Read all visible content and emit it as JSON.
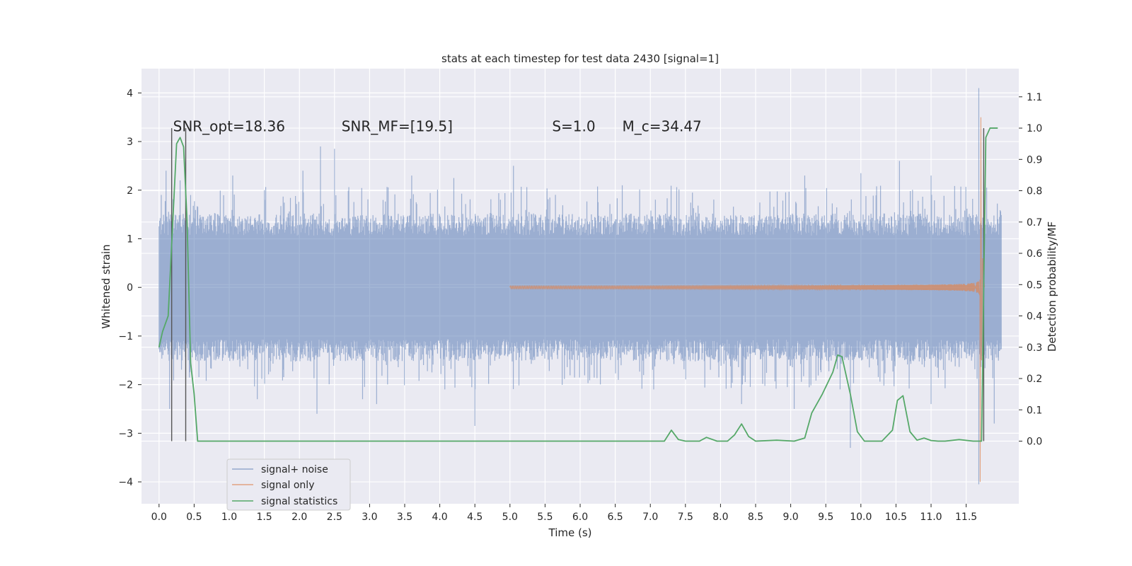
{
  "chart_data": {
    "type": "line",
    "title": "stats at each timestep for test data 2430 [signal=1]",
    "xlabel": "Time (s)",
    "ylabel_left": "Whitened strain",
    "ylabel_right": "Detection probability/MF",
    "xlim": [
      -0.25,
      12.25
    ],
    "ylim_left": [
      -4.45,
      4.5
    ],
    "ylim_right": [
      -0.2,
      1.19
    ],
    "x_ticks": [
      0.0,
      0.5,
      1.0,
      1.5,
      2.0,
      2.5,
      3.0,
      3.5,
      4.0,
      4.5,
      5.0,
      5.5,
      6.0,
      6.5,
      7.0,
      7.5,
      8.0,
      8.5,
      9.0,
      9.5,
      10.0,
      10.5,
      11.0,
      11.5
    ],
    "x_tick_labels": [
      "0.0",
      "0.5",
      "1.0",
      "1.5",
      "2.0",
      "2.5",
      "3.0",
      "3.5",
      "4.0",
      "4.5",
      "5.0",
      "5.5",
      "6.0",
      "6.5",
      "7.0",
      "7.5",
      "8.0",
      "8.5",
      "9.0",
      "9.5",
      "10.0",
      "10.5",
      "11.0",
      "11.5"
    ],
    "y_left_ticks": [
      -4,
      -3,
      -2,
      -1,
      0,
      1,
      2,
      3,
      4
    ],
    "y_left_tick_labels": [
      "−4",
      "−3",
      "−2",
      "−1",
      "0",
      "1",
      "2",
      "3",
      "4"
    ],
    "y_right_ticks": [
      0.0,
      0.1,
      0.2,
      0.3,
      0.4,
      0.5,
      0.6,
      0.7,
      0.8,
      0.9,
      1.0,
      1.1
    ],
    "y_right_tick_labels": [
      "0.0",
      "0.1",
      "0.2",
      "0.3",
      "0.4",
      "0.5",
      "0.6",
      "0.7",
      "0.8",
      "0.9",
      "1.0",
      "1.1"
    ],
    "grid": true,
    "legend_position": "lower-left",
    "annotations": [
      {
        "text": "SNR_opt=18.36",
        "x": 0.2,
        "y": 3.3
      },
      {
        "text": "SNR_MF=[19.5]",
        "x": 2.6,
        "y": 3.3
      },
      {
        "text": "S=1.0",
        "x": 5.6,
        "y": 3.3
      },
      {
        "text": "M_c=34.47",
        "x": 6.6,
        "y": 3.3
      }
    ],
    "vertical_lines": [
      0.18,
      0.38,
      11.75
    ],
    "series": [
      {
        "name": "signal+ noise",
        "color": "#4c72b0",
        "axis": "left",
        "kind": "noise_envelope",
        "x_start": 0.0,
        "x_end": 12.0,
        "typical_amplitude": 1.3,
        "peaks": [
          {
            "x": 0.1,
            "y": 2.4
          },
          {
            "x": 0.3,
            "y": 2.2
          },
          {
            "x": 0.45,
            "y": 1.9
          },
          {
            "x": 1.05,
            "y": 2.3
          },
          {
            "x": 1.5,
            "y": 2.0
          },
          {
            "x": 2.05,
            "y": 2.4
          },
          {
            "x": 2.3,
            "y": 2.9
          },
          {
            "x": 2.5,
            "y": 2.85
          },
          {
            "x": 3.6,
            "y": 2.3
          },
          {
            "x": 4.2,
            "y": 2.25
          },
          {
            "x": 5.05,
            "y": 2.5
          },
          {
            "x": 6.6,
            "y": 2.1
          },
          {
            "x": 7.6,
            "y": 1.95
          },
          {
            "x": 9.2,
            "y": 2.3
          },
          {
            "x": 10.0,
            "y": 2.35
          },
          {
            "x": 10.55,
            "y": 2.6
          },
          {
            "x": 11.0,
            "y": 2.3
          },
          {
            "x": 11.68,
            "y": 4.1
          }
        ],
        "troughs": [
          {
            "x": 0.15,
            "y": -2.5
          },
          {
            "x": 1.4,
            "y": -2.3
          },
          {
            "x": 2.25,
            "y": -2.6
          },
          {
            "x": 2.9,
            "y": -2.3
          },
          {
            "x": 3.1,
            "y": -2.4
          },
          {
            "x": 4.5,
            "y": -2.85
          },
          {
            "x": 8.3,
            "y": -2.4
          },
          {
            "x": 9.05,
            "y": -2.5
          },
          {
            "x": 9.85,
            "y": -3.3
          },
          {
            "x": 11.0,
            "y": -2.4
          },
          {
            "x": 11.68,
            "y": -4.05
          },
          {
            "x": 11.9,
            "y": -2.8
          }
        ]
      },
      {
        "name": "signal only",
        "color": "#dd8452",
        "axis": "left",
        "kind": "chirp",
        "x_start": 5.0,
        "merger_time": 11.7,
        "peak_amplitude": 3.6,
        "ringdown_end": 11.76
      },
      {
        "name": "signal statistics",
        "color": "#55a868",
        "axis": "right",
        "kind": "line",
        "x": [
          0.0,
          0.05,
          0.13,
          0.2,
          0.25,
          0.3,
          0.35,
          0.4,
          0.45,
          0.5,
          0.55,
          7.0,
          7.2,
          7.3,
          7.4,
          7.5,
          7.7,
          7.8,
          7.95,
          8.1,
          8.2,
          8.3,
          8.4,
          8.5,
          8.8,
          9.05,
          9.2,
          9.3,
          9.45,
          9.6,
          9.67,
          9.73,
          9.85,
          9.95,
          10.05,
          10.3,
          10.45,
          10.52,
          10.6,
          10.7,
          10.8,
          10.9,
          11.0,
          11.1,
          11.2,
          11.4,
          11.6,
          11.72,
          11.78,
          11.84,
          11.95
        ],
        "y": [
          0.3,
          0.35,
          0.4,
          0.72,
          0.95,
          0.97,
          0.94,
          0.7,
          0.25,
          0.15,
          0.0,
          0.0,
          0.0,
          0.035,
          0.005,
          0.0,
          0.0,
          0.012,
          0.0,
          0.0,
          0.02,
          0.055,
          0.015,
          0.0,
          0.003,
          0.0,
          0.01,
          0.09,
          0.15,
          0.22,
          0.275,
          0.27,
          0.15,
          0.03,
          0.0,
          0.0,
          0.035,
          0.13,
          0.145,
          0.03,
          0.003,
          0.01,
          0.002,
          0.0,
          0.0,
          0.005,
          0.0,
          0.0,
          0.97,
          1.0,
          1.0
        ]
      }
    ]
  }
}
